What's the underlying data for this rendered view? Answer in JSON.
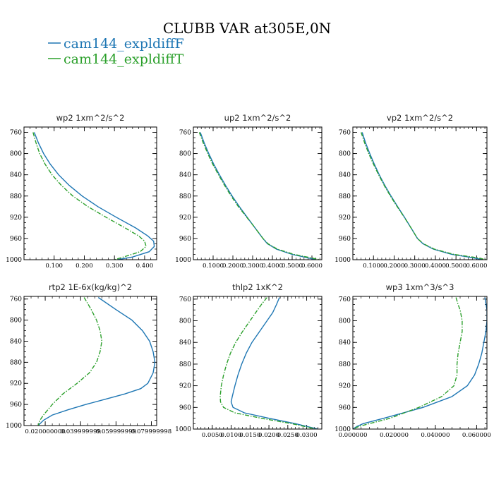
{
  "figure": {
    "title": "CLUBB VAR at305E,0N",
    "legend": [
      {
        "label": "cam144_expldiffF",
        "color": "#1f77b4",
        "dash": "solid"
      },
      {
        "label": "cam144_expldiffT",
        "color": "#2ca02c",
        "dash": "dashdot"
      }
    ]
  },
  "chart_data": [
    {
      "type": "line",
      "title": "wp2   1xm^2/s^2",
      "ylim": [
        1000,
        750
      ],
      "yticks": [
        "760",
        "800",
        "840",
        "880",
        "920",
        "960",
        "1000"
      ],
      "yticks_values": [
        760,
        800,
        840,
        880,
        920,
        960,
        1000
      ],
      "xlim": [
        0.0,
        0.44
      ],
      "xticks": [
        "0.100",
        "0.200",
        "0.300",
        "0.400"
      ],
      "xticks_values": [
        0.1,
        0.2,
        0.3,
        0.4
      ],
      "series": [
        {
          "name": "cam144_expldiffF",
          "y": [
            760,
            780,
            800,
            820,
            840,
            860,
            880,
            900,
            920,
            940,
            955,
            965,
            975,
            985,
            995,
            1000
          ],
          "x": [
            0.034,
            0.048,
            0.065,
            0.087,
            0.115,
            0.15,
            0.193,
            0.245,
            0.306,
            0.37,
            0.41,
            0.43,
            0.432,
            0.415,
            0.36,
            0.31
          ]
        },
        {
          "name": "cam144_expldiffT",
          "y": [
            760,
            780,
            800,
            820,
            840,
            860,
            880,
            900,
            920,
            940,
            955,
            965,
            975,
            985,
            995,
            1000
          ],
          "x": [
            0.03,
            0.04,
            0.052,
            0.07,
            0.093,
            0.124,
            0.162,
            0.212,
            0.272,
            0.335,
            0.38,
            0.4,
            0.405,
            0.385,
            0.33,
            0.3
          ]
        }
      ]
    },
    {
      "type": "line",
      "title": "up2   1xm^2/s^2",
      "ylim": [
        1000,
        750
      ],
      "yticks": [
        "760",
        "800",
        "840",
        "880",
        "920",
        "960",
        "1000"
      ],
      "yticks_values": [
        760,
        800,
        840,
        880,
        920,
        960,
        1000
      ],
      "xlim": [
        0.0,
        0.65
      ],
      "xticks": [
        "0.1000",
        "0.2000",
        "0.3000",
        "0.4000",
        "0.5000",
        "0.6000"
      ],
      "xticks_values": [
        0.1,
        0.2,
        0.3,
        0.4,
        0.5,
        0.6
      ],
      "series": [
        {
          "name": "cam144_expldiffF",
          "y": [
            760,
            780,
            800,
            820,
            840,
            860,
            880,
            900,
            920,
            940,
            960,
            970,
            980,
            990,
            995,
            1000
          ],
          "x": [
            0.035,
            0.055,
            0.078,
            0.103,
            0.132,
            0.163,
            0.196,
            0.233,
            0.272,
            0.312,
            0.352,
            0.375,
            0.42,
            0.5,
            0.56,
            0.62
          ]
        },
        {
          "name": "cam144_expldiffT",
          "y": [
            760,
            780,
            800,
            820,
            840,
            860,
            880,
            900,
            920,
            940,
            960,
            970,
            980,
            990,
            995,
            1000
          ],
          "x": [
            0.03,
            0.05,
            0.073,
            0.098,
            0.127,
            0.158,
            0.191,
            0.228,
            0.27,
            0.312,
            0.352,
            0.378,
            0.425,
            0.51,
            0.575,
            0.64
          ]
        }
      ]
    },
    {
      "type": "line",
      "title": "vp2   1xm^2/s^2",
      "ylim": [
        1000,
        750
      ],
      "yticks": [
        "760",
        "800",
        "840",
        "880",
        "920",
        "960",
        "1000"
      ],
      "yticks_values": [
        760,
        800,
        840,
        880,
        920,
        960,
        1000
      ],
      "xlim": [
        0.0,
        0.65
      ],
      "xticks": [
        "0.1000",
        "0.2000",
        "0.3000",
        "0.4000",
        "0.5000",
        "0.6000"
      ],
      "xticks_values": [
        0.1,
        0.2,
        0.3,
        0.4,
        0.5,
        0.6
      ],
      "series": [
        {
          "name": "cam144_expldiffF",
          "y": [
            760,
            780,
            800,
            820,
            840,
            860,
            880,
            900,
            920,
            940,
            960,
            970,
            980,
            990,
            995,
            1000
          ],
          "x": [
            0.045,
            0.062,
            0.082,
            0.104,
            0.128,
            0.155,
            0.185,
            0.217,
            0.25,
            0.282,
            0.313,
            0.34,
            0.39,
            0.48,
            0.56,
            0.63
          ]
        },
        {
          "name": "cam144_expldiffT",
          "y": [
            760,
            780,
            800,
            820,
            840,
            860,
            880,
            900,
            920,
            940,
            960,
            970,
            980,
            990,
            995,
            1000
          ],
          "x": [
            0.04,
            0.057,
            0.077,
            0.1,
            0.125,
            0.152,
            0.182,
            0.215,
            0.249,
            0.282,
            0.313,
            0.342,
            0.395,
            0.49,
            0.58,
            0.65
          ]
        }
      ]
    },
    {
      "type": "line",
      "title": "rtp2   1E-6x(kg/kg)^2",
      "ylim": [
        1000,
        755
      ],
      "yticks": [
        "760",
        "800",
        "840",
        "880",
        "920",
        "960",
        "1000"
      ],
      "yticks_values": [
        760,
        800,
        840,
        880,
        920,
        960,
        1000
      ],
      "xlim": [
        0.008,
        0.083
      ],
      "xticks": [
        "0.020000000",
        "0.039999999",
        "0.059999999",
        "0.079999998"
      ],
      "xticks_values": [
        0.02,
        0.04,
        0.06,
        0.08
      ],
      "series": [
        {
          "name": "cam144_expldiffF",
          "y": [
            757,
            780,
            800,
            820,
            840,
            860,
            880,
            900,
            920,
            930,
            940,
            950,
            960,
            970,
            980,
            990,
            1000
          ],
          "x": [
            0.05,
            0.06,
            0.069,
            0.075,
            0.079,
            0.081,
            0.082,
            0.081,
            0.078,
            0.074,
            0.065,
            0.054,
            0.043,
            0.033,
            0.024,
            0.019,
            0.016
          ]
        },
        {
          "name": "cam144_expldiffT",
          "y": [
            757,
            780,
            800,
            820,
            840,
            860,
            880,
            900,
            920,
            940,
            960,
            980,
            990,
            1000
          ],
          "x": [
            0.042,
            0.046,
            0.049,
            0.051,
            0.052,
            0.051,
            0.049,
            0.045,
            0.038,
            0.03,
            0.024,
            0.019,
            0.017,
            0.016
          ]
        }
      ]
    },
    {
      "type": "line",
      "title": "thlp2   1xK^2",
      "ylim": [
        1000,
        755
      ],
      "yticks": [
        "760",
        "800",
        "840",
        "880",
        "920",
        "960",
        "1000"
      ],
      "yticks_values": [
        760,
        800,
        840,
        880,
        920,
        960,
        1000
      ],
      "xlim": [
        0.0,
        0.034
      ],
      "xticks": [
        "0.0050",
        "0.0100",
        "0.0150",
        "0.0200",
        "0.0250",
        "0.0300"
      ],
      "xticks_values": [
        0.005,
        0.01,
        0.015,
        0.02,
        0.025,
        0.03
      ],
      "series": [
        {
          "name": "cam144_expldiffF",
          "y": [
            757,
            770,
            785,
            800,
            820,
            840,
            860,
            880,
            900,
            920,
            940,
            950,
            960,
            970,
            980,
            990,
            1000
          ],
          "x": [
            0.0228,
            0.022,
            0.021,
            0.0195,
            0.0175,
            0.0155,
            0.014,
            0.0128,
            0.0118,
            0.011,
            0.0103,
            0.01,
            0.0105,
            0.0135,
            0.02,
            0.027,
            0.033
          ]
        },
        {
          "name": "cam144_expldiffT",
          "y": [
            757,
            770,
            785,
            800,
            820,
            840,
            860,
            880,
            900,
            920,
            940,
            950,
            960,
            970,
            980,
            990,
            1000
          ],
          "x": [
            0.0195,
            0.018,
            0.0165,
            0.015,
            0.013,
            0.0112,
            0.0098,
            0.0088,
            0.008,
            0.0074,
            0.0071,
            0.0072,
            0.008,
            0.011,
            0.018,
            0.026,
            0.0325
          ]
        }
      ]
    },
    {
      "type": "line",
      "title": "wp3   1xm^3/s^3",
      "ylim": [
        1000,
        755
      ],
      "yticks": [
        "760",
        "800",
        "840",
        "880",
        "920",
        "960",
        "1000"
      ],
      "yticks_values": [
        760,
        800,
        840,
        880,
        920,
        960,
        1000
      ],
      "xlim": [
        0.0,
        0.065
      ],
      "xticks": [
        "0.000000",
        "0.020000",
        "0.040000",
        "0.060000"
      ],
      "xticks_values": [
        0.0,
        0.02,
        0.04,
        0.06
      ],
      "series": [
        {
          "name": "cam144_expldiffF",
          "y": [
            757,
            780,
            800,
            820,
            840,
            860,
            880,
            900,
            920,
            940,
            960,
            980,
            990,
            995,
            1000
          ],
          "x": [
            0.064,
            0.065,
            0.065,
            0.0645,
            0.0635,
            0.0625,
            0.061,
            0.059,
            0.0555,
            0.048,
            0.034,
            0.015,
            0.005,
            0.002,
            0.0
          ]
        },
        {
          "name": "cam144_expldiffT",
          "y": [
            757,
            770,
            780,
            800,
            820,
            840,
            860,
            880,
            900,
            920,
            940,
            960,
            980,
            990,
            995,
            1000
          ],
          "x": [
            0.05,
            0.051,
            0.052,
            0.053,
            0.053,
            0.052,
            0.051,
            0.0505,
            0.0505,
            0.049,
            0.043,
            0.032,
            0.018,
            0.008,
            0.003,
            0.0
          ]
        }
      ]
    }
  ]
}
